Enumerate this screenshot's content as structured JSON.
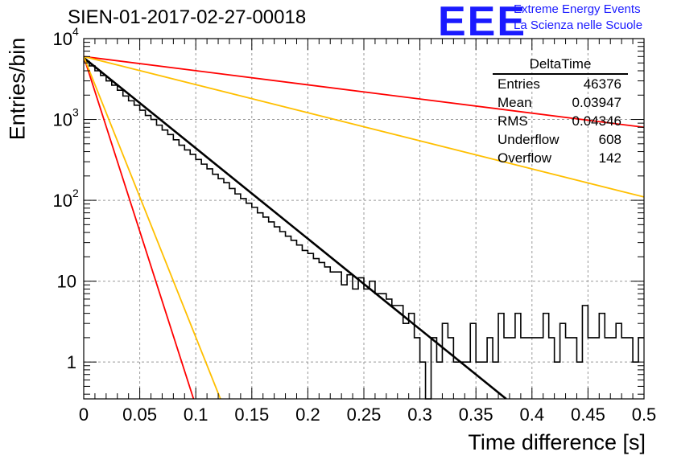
{
  "title": "SIEN-01-2017-02-27-00018",
  "logo": {
    "text": "EEE",
    "line1": "Extreme Energy Events",
    "line2": "La Scienza nelle Scuole"
  },
  "stats": {
    "title": "DeltaTime",
    "rows": [
      {
        "label": "Entries",
        "value": "46376"
      },
      {
        "label": "Mean",
        "value": "0.03947"
      },
      {
        "label": "RMS",
        "value": "0.04346"
      },
      {
        "label": "Underflow",
        "value": "608"
      },
      {
        "label": "Overflow",
        "value": "142"
      }
    ]
  },
  "chart_data": {
    "type": "line",
    "title": "SIEN-01-2017-02-27-00018",
    "xlabel": "Time difference [s]",
    "ylabel": "Entries/bin",
    "xlim": [
      0,
      0.5
    ],
    "ylim": [
      0.35,
      10000
    ],
    "yscale": "log",
    "grid": true,
    "xticks": [
      "0",
      "0.05",
      "0.1",
      "0.15",
      "0.2",
      "0.25",
      "0.3",
      "0.35",
      "0.4",
      "0.45",
      "0.5"
    ],
    "yticks": [
      {
        "value": 1,
        "base": "1",
        "exp": ""
      },
      {
        "value": 10,
        "base": "10",
        "exp": ""
      },
      {
        "value": 100,
        "base": "10",
        "exp": "2"
      },
      {
        "value": 1000,
        "base": "10",
        "exp": "3"
      },
      {
        "value": 10000,
        "base": "10",
        "exp": "4"
      }
    ],
    "histogram": {
      "bin_width": 0.005,
      "color": "#000000",
      "counts": [
        5200,
        4600,
        4000,
        3500,
        3000,
        2650,
        2300,
        1950,
        1700,
        1500,
        1300,
        1120,
        1000,
        850,
        740,
        650,
        560,
        480,
        420,
        370,
        320,
        280,
        245,
        210,
        185,
        165,
        140,
        120,
        105,
        92,
        82,
        70,
        62,
        54,
        47,
        41,
        36,
        32,
        28,
        24,
        22,
        19,
        17,
        15,
        13,
        13,
        9,
        12,
        8,
        11,
        8,
        10,
        7,
        7,
        6,
        5,
        5,
        3,
        4,
        2,
        1,
        0.3,
        2,
        1,
        3,
        2,
        1,
        1,
        1,
        3,
        1,
        1,
        2,
        1,
        4,
        2,
        2,
        4,
        2,
        2,
        2,
        2,
        4,
        2,
        1,
        3,
        2,
        2,
        1,
        5,
        2,
        2,
        4,
        2,
        2,
        3,
        2,
        2,
        1,
        2
      ]
    },
    "lines": [
      {
        "color": "#000000",
        "points": [
          [
            0,
            5800
          ],
          [
            0.377,
            0.35
          ]
        ]
      },
      {
        "color": "#ff0000",
        "points": [
          [
            0,
            6000
          ],
          [
            0.5,
            800
          ]
        ]
      },
      {
        "color": "#ffbf00",
        "points": [
          [
            0,
            6000
          ],
          [
            0.5,
            110
          ]
        ]
      },
      {
        "color": "#ff0000",
        "points": [
          [
            0,
            6000
          ],
          [
            0.098,
            0.35
          ]
        ]
      },
      {
        "color": "#ffbf00",
        "points": [
          [
            0,
            6000
          ],
          [
            0.122,
            0.35
          ]
        ]
      }
    ]
  }
}
